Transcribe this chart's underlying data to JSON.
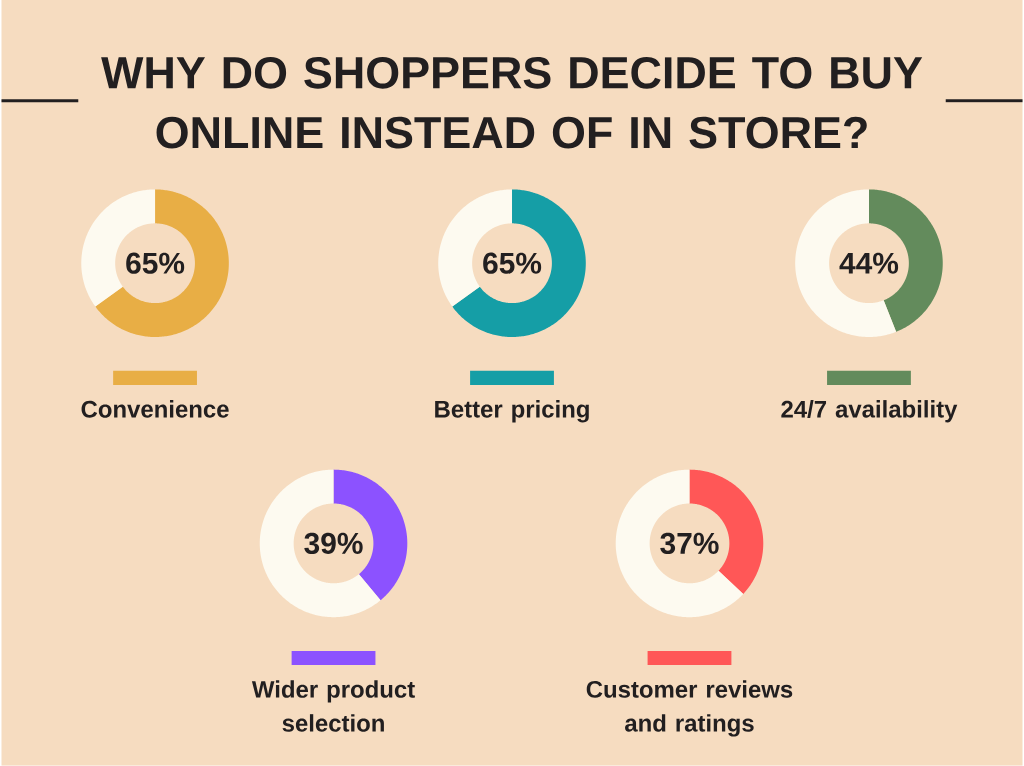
{
  "chart_data": [
    {
      "type": "other",
      "title": "WHY DO SHOPPERS DECIDE TO BUY ONLINE INSTEAD OF IN STORE?"
    },
    {
      "type": "donut",
      "categories": [
        "Convenience",
        null
      ],
      "values": [
        65,
        35
      ],
      "colors": [
        "#e8ae45",
        "#fdfaf0"
      ],
      "annotations": [
        "65%"
      ],
      "legend": "bottom"
    },
    {
      "type": "donut",
      "categories": [
        "Better pricing",
        null
      ],
      "values": [
        65,
        35
      ],
      "colors": [
        "#159ea6",
        "#fdfaf0"
      ],
      "annotations": [
        "65%"
      ],
      "legend": "bottom"
    },
    {
      "type": "donut",
      "categories": [
        "24/7 availability",
        null
      ],
      "values": [
        44,
        56
      ],
      "colors": [
        "#638b5c",
        "#fdfaf0"
      ],
      "annotations": [
        "44%"
      ],
      "legend": "bottom"
    },
    {
      "type": "donut",
      "categories": [
        "Wider product selection",
        null
      ],
      "values": [
        39,
        61
      ],
      "colors": [
        "#8c52ff",
        "#fdfaf0"
      ],
      "annotations": [
        "39%"
      ],
      "legend": "bottom"
    },
    {
      "type": "donut",
      "categories": [
        "Customer reviews and ratings",
        null
      ],
      "values": [
        37,
        63
      ],
      "colors": [
        "#ff5757",
        "#fdfaf0"
      ],
      "annotations": [
        "37%"
      ],
      "legend": "bottom"
    }
  ]
}
